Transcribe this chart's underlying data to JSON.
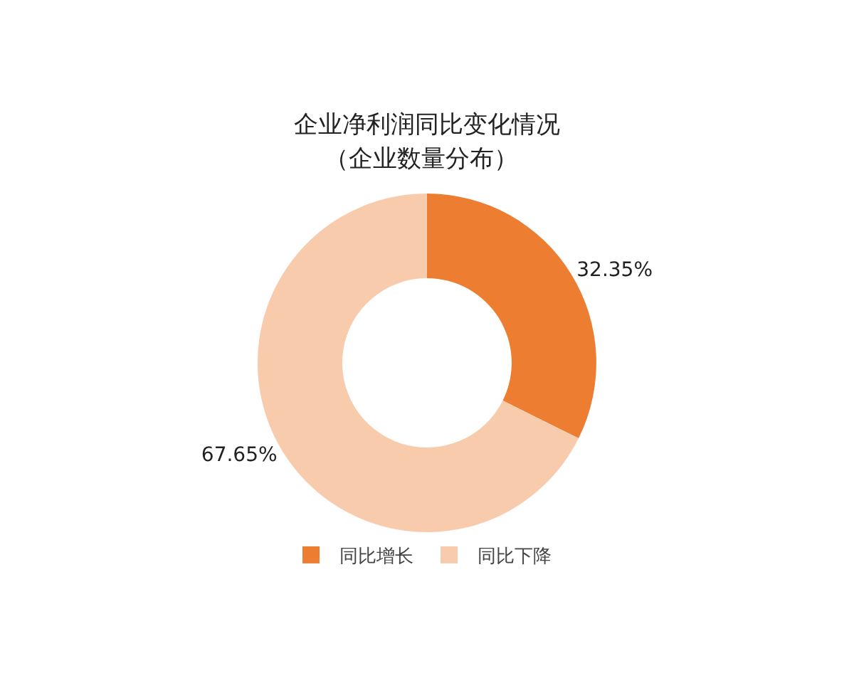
{
  "chart_data": {
    "type": "donut",
    "title": "企业净利润同比变化情况",
    "subtitle": "（企业数量分布）",
    "categories": [
      "同比增长",
      "同比下降"
    ],
    "values": [
      32.35,
      67.65
    ],
    "colors": [
      "#ed7d31",
      "#f8cbad"
    ],
    "value_labels": [
      "32.35%",
      "67.65%"
    ],
    "legend": "bottom"
  }
}
